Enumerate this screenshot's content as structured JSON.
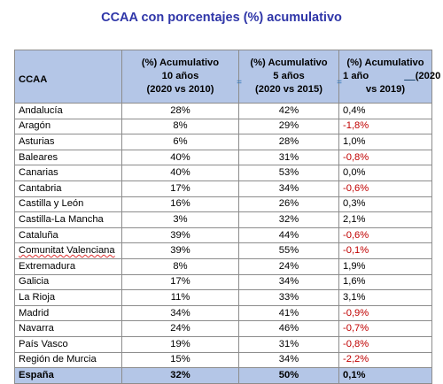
{
  "title": "CCAA con porcentajes (%) acumulativo",
  "headers": {
    "ccaa": "CCAA",
    "col1": [
      "(%) Acumulativo",
      "10 años",
      "(2020 vs 2010)"
    ],
    "col2": [
      "(%) Acumulativo",
      "5 años",
      "(2020 vs 2015)"
    ],
    "col3": [
      "(%) Acumulativo",
      "1 año",
      "(2020",
      "vs 2019)"
    ],
    "marks": [
      "=",
      "=",
      "__"
    ]
  },
  "rows": [
    {
      "name": "Andalucía",
      "v10": "28%",
      "v5": "42%",
      "v1": "0,4%",
      "neg": false
    },
    {
      "name": "Aragón",
      "v10": "8%",
      "v5": "29%",
      "v1": "-1,8%",
      "neg": true
    },
    {
      "name": "Asturias",
      "v10": "6%",
      "v5": "28%",
      "v1": "1,0%",
      "neg": false
    },
    {
      "name": "Baleares",
      "v10": "40%",
      "v5": "31%",
      "v1": "-0,8%",
      "neg": true
    },
    {
      "name": "Canarias",
      "v10": "40%",
      "v5": "53%",
      "v1": "0,0%",
      "neg": false
    },
    {
      "name": "Cantabria",
      "v10": "17%",
      "v5": "34%",
      "v1": "-0,6%",
      "neg": true
    },
    {
      "name": "Castilla y León",
      "v10": "16%",
      "v5": "26%",
      "v1": "0,3%",
      "neg": false
    },
    {
      "name": "Castilla-La Mancha",
      "v10": "3%",
      "v5": "32%",
      "v1": "2,1%",
      "neg": false
    },
    {
      "name": "Cataluña",
      "v10": "39%",
      "v5": "44%",
      "v1": "-0,6%",
      "neg": true
    },
    {
      "name": "Comunitat Valenciana",
      "v10": "39%",
      "v5": "55%",
      "v1": "-0,1%",
      "neg": true
    },
    {
      "name": "Extremadura",
      "v10": "8%",
      "v5": "24%",
      "v1": "1,9%",
      "neg": false
    },
    {
      "name": "Galicia",
      "v10": "17%",
      "v5": "34%",
      "v1": "1,6%",
      "neg": false
    },
    {
      "name": "La Rioja",
      "v10": "11%",
      "v5": "33%",
      "v1": "3,1%",
      "neg": false
    },
    {
      "name": "Madrid",
      "v10": "34%",
      "v5": "41%",
      "v1": "-0,9%",
      "neg": true
    },
    {
      "name": "Navarra",
      "v10": "24%",
      "v5": "46%",
      "v1": "-0,7%",
      "neg": true
    },
    {
      "name": "País Vasco",
      "v10": "19%",
      "v5": "31%",
      "v1": "-0,8%",
      "neg": true
    },
    {
      "name": "Región de Murcia",
      "v10": "15%",
      "v5": "34%",
      "v1": "-2,2%",
      "neg": true
    }
  ],
  "total": {
    "name": "España",
    "v10": "32%",
    "v5": "50%",
    "v1": "0,1%"
  },
  "colors": {
    "header_bg": "#b4c6e7",
    "title": "#2f36a8",
    "negative": "#c00000"
  }
}
